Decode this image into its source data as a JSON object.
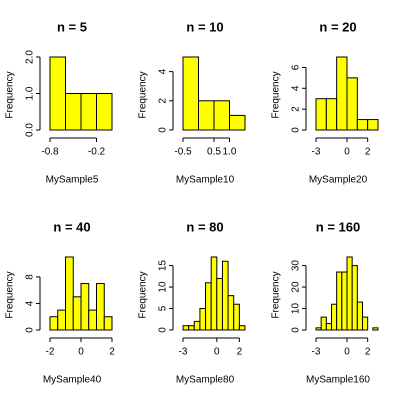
{
  "chart_data": [
    {
      "type": "histogram",
      "title": "n = 5",
      "x_label": "MySample5",
      "y_label": "Frequency",
      "color": "#ffff00",
      "bins": [
        -0.8,
        -0.6,
        -0.4,
        -0.2,
        0.0
      ],
      "counts": [
        2,
        1,
        1,
        1
      ],
      "xlim": [
        -0.8,
        0.0
      ],
      "xticks": [
        -0.8,
        -0.2
      ],
      "ylim": [
        0,
        2
      ],
      "yticks": [
        {
          "value": 0,
          "label": "0.0"
        },
        {
          "value": 1,
          "label": "1.0"
        },
        {
          "value": 2,
          "label": "2.0"
        }
      ]
    },
    {
      "type": "histogram",
      "title": "n = 10",
      "x_label": "MySample10",
      "y_label": "Frequency",
      "color": "#ffff00",
      "bins": [
        -0.5,
        0.0,
        0.5,
        1.0,
        1.5
      ],
      "counts": [
        5,
        2,
        2,
        1
      ],
      "xlim": [
        -0.5,
        1.5
      ],
      "xticks": [
        -0.5,
        0.5,
        {
          "value": 1,
          "label": "1.0"
        }
      ],
      "ylim": [
        0,
        5
      ],
      "yticks": [
        0,
        2,
        4
      ]
    },
    {
      "type": "histogram",
      "title": "n = 20",
      "x_label": "MySample20",
      "y_label": "Frequency",
      "color": "#ffff00",
      "bins": [
        -3,
        -2,
        -1,
        0,
        1,
        2,
        3
      ],
      "counts": [
        3,
        3,
        7,
        5,
        1,
        1
      ],
      "xlim": [
        -3,
        3
      ],
      "xticks": [
        -3,
        0,
        2
      ],
      "ylim": [
        0,
        7
      ],
      "yticks": [
        0,
        2,
        4,
        6
      ]
    },
    {
      "type": "histogram",
      "title": "n = 40",
      "x_label": "MySample40",
      "y_label": "Frequency",
      "color": "#ffff00",
      "bins": [
        -2,
        -1.5,
        -1,
        -0.5,
        0,
        0.5,
        1,
        1.5,
        2
      ],
      "counts": [
        2,
        3,
        11,
        5,
        7,
        3,
        7,
        2
      ],
      "xlim": [
        -2,
        2
      ],
      "xticks": [
        -2,
        0,
        2
      ],
      "ylim": [
        0,
        11
      ],
      "yticks": [
        0,
        4,
        8
      ]
    },
    {
      "type": "histogram",
      "title": "n = 80",
      "x_label": "MySample80",
      "y_label": "Frequency",
      "color": "#ffff00",
      "bins": [
        -3,
        -2.5,
        -2,
        -1.5,
        -1,
        -0.5,
        0,
        0.5,
        1,
        1.5,
        2,
        2.5
      ],
      "counts": [
        1,
        1,
        2,
        5,
        11,
        17,
        12,
        16,
        8,
        6,
        1
      ],
      "xlim": [
        -3,
        2.5
      ],
      "xticks": [
        -3,
        0,
        2
      ],
      "ylim": [
        0,
        17
      ],
      "yticks": [
        0,
        5,
        10,
        15
      ]
    },
    {
      "type": "histogram",
      "title": "n = 160",
      "x_label": "MySample160",
      "y_label": "Frequency",
      "color": "#ffff00",
      "bins": [
        -3,
        -2.5,
        -2,
        -1.5,
        -1,
        -0.5,
        0,
        0.5,
        1,
        1.5,
        2,
        2.5,
        3
      ],
      "counts": [
        1,
        6,
        3,
        12,
        27,
        27,
        34,
        30,
        13,
        6,
        0,
        1
      ],
      "xlim": [
        -3,
        3
      ],
      "xticks": [
        -3,
        0,
        2
      ],
      "ylim": [
        0,
        34
      ],
      "yticks": [
        0,
        10,
        20,
        30
      ]
    }
  ]
}
